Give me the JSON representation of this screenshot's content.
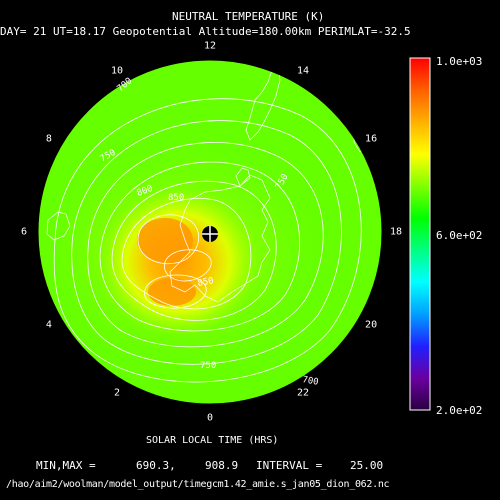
{
  "header": {
    "title": "NEUTRAL TEMPERATURE (K)",
    "subtitle": "DAY= 21 UT=18.17 Geopotential Altitude=180.00km PERIMLAT=-32.5"
  },
  "polar_axis": {
    "hours": [
      "12",
      "14",
      "16",
      "18",
      "20",
      "22",
      "0",
      "2",
      "4",
      "6",
      "8",
      "10"
    ],
    "label": "SOLAR LOCAL TIME (HRS)"
  },
  "colorbar": {
    "max_label": "1.0e+03",
    "mid_label": "6.0e+02",
    "min_label": "2.0e+02",
    "min": 200,
    "max": 1000,
    "colors": [
      "#2a0040",
      "#6a00a0",
      "#2020ff",
      "#00a0ff",
      "#00ffff",
      "#00ff80",
      "#00ff00",
      "#80ff00",
      "#ffff00",
      "#ffb000",
      "#ff6000",
      "#ff0000"
    ]
  },
  "stats": {
    "minmax_label": "MIN,MAX =",
    "min_value": "690.3,",
    "max_value": "908.9",
    "interval_label": "INTERVAL =",
    "interval_value": "25.00"
  },
  "footer": {
    "path": "/hao/aim2/woolman/model_output/timegcm1.42_amie.s_jan05_dion_062.nc"
  },
  "contour_labels": [
    "700",
    "750",
    "800",
    "850",
    "850",
    "750",
    "750",
    "700"
  ],
  "pole_marker": "south-pole-marker",
  "colors": {
    "field_base": "#66ff00",
    "field_warm": "#ccff00",
    "field_hot": "#ffcc00",
    "field_peak": "#ff9900",
    "contour": "#ffffff"
  }
}
